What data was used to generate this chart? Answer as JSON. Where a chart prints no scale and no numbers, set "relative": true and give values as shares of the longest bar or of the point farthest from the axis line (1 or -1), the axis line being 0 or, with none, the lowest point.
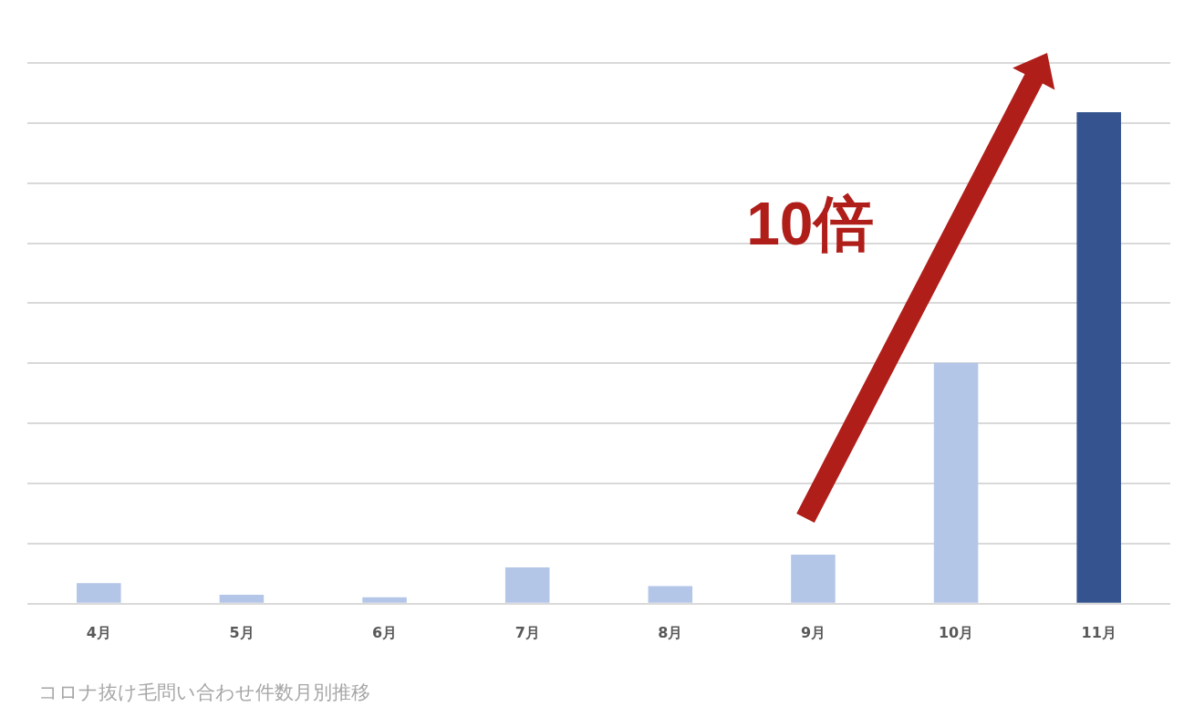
{
  "chart_data": {
    "type": "bar",
    "title": "コロナ抜け毛問い合わせ件数月別推移",
    "annotations": [
      "10倍"
    ],
    "categories": [
      "4月",
      "5月",
      "6月",
      "7月",
      "8月",
      "9月",
      "10月",
      "11月"
    ],
    "values": [
      0.042,
      0.018,
      0.013,
      0.074,
      0.036,
      0.1,
      0.49,
      1
    ],
    "colors": [
      "#b4c6e7",
      "#b4c6e7",
      "#b4c6e7",
      "#b4c6e7",
      "#b4c6e7",
      "#b4c6e7",
      "#b4c6e7",
      "#34538f"
    ],
    "relative": true,
    "grid": "y"
  }
}
